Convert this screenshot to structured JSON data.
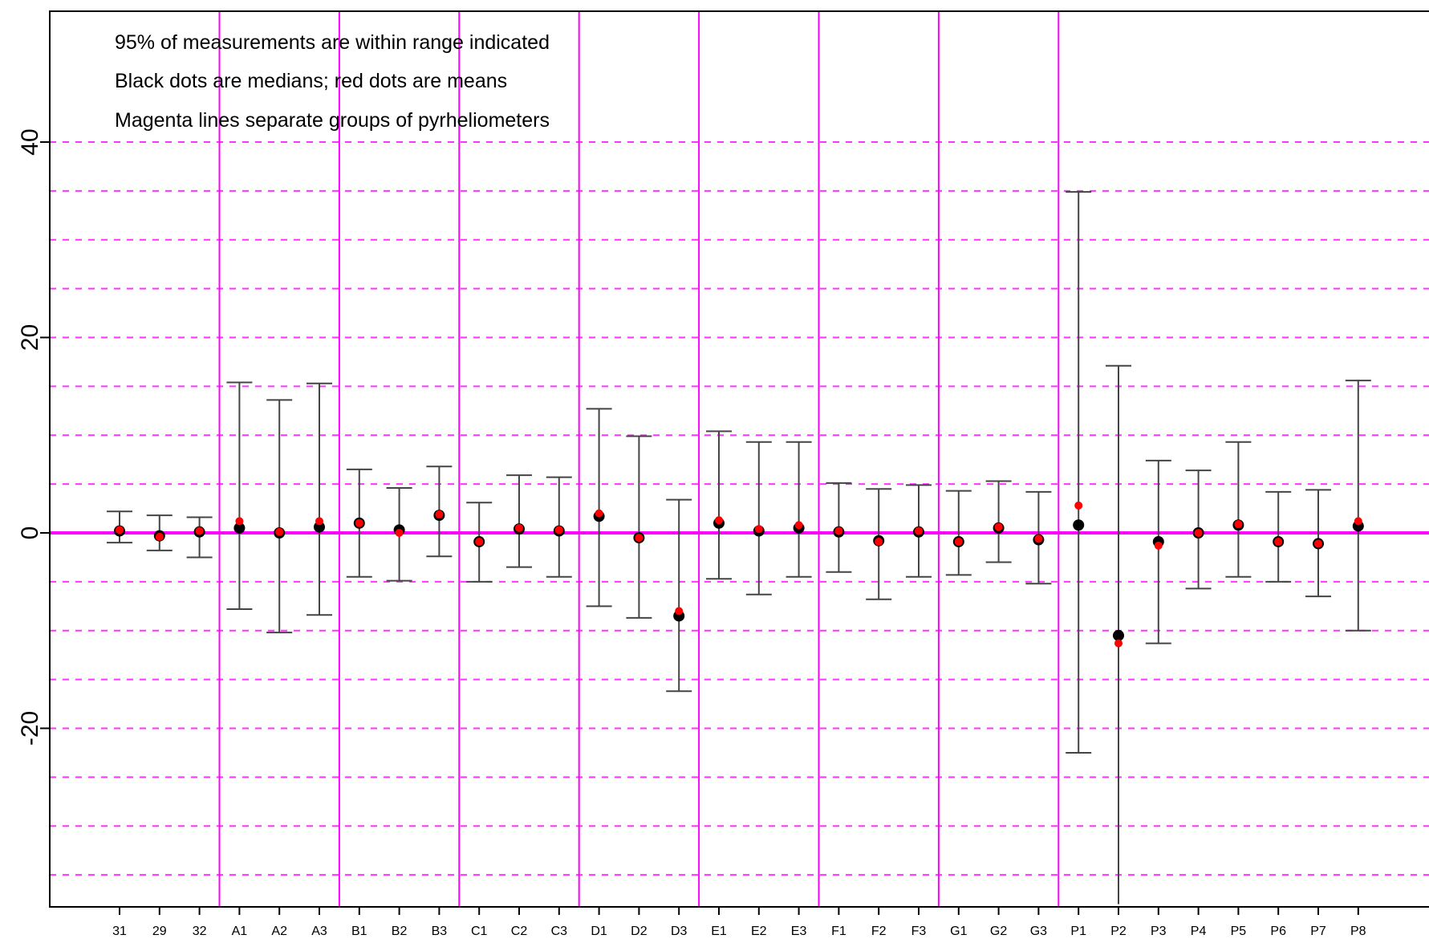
{
  "chart_data": {
    "type": "scatter",
    "title": "",
    "xlabel": "",
    "ylabel": "",
    "ylim": [
      -38,
      53
    ],
    "yticks": [
      -20,
      0,
      20,
      40
    ],
    "ytick_labels": [
      "-20",
      "0",
      "20",
      "40"
    ],
    "grid": true,
    "grid_style": "dashed horizontal lines every 5 units",
    "categories": [
      "31",
      "29",
      "32",
      "A1",
      "A2",
      "A3",
      "B1",
      "B2",
      "B3",
      "C1",
      "C2",
      "C3",
      "D1",
      "D2",
      "D3",
      "E1",
      "E2",
      "E3",
      "F1",
      "F2",
      "F3",
      "G1",
      "G2",
      "G3",
      "P1",
      "P2",
      "P3",
      "P4",
      "P5",
      "P6",
      "P7",
      "P8"
    ],
    "series": [
      {
        "key": "median",
        "color": "#000000",
        "values": [
          0.2,
          -0.3,
          0.1,
          0.5,
          0.0,
          0.6,
          1.0,
          0.3,
          1.8,
          -0.9,
          0.4,
          0.2,
          1.7,
          -0.5,
          -8.5,
          1.0,
          0.2,
          0.5,
          0.1,
          -0.8,
          0.1,
          -0.9,
          0.5,
          -0.7,
          0.8,
          -10.5,
          -0.9,
          0.0,
          0.8,
          -0.9,
          -1.1,
          0.7
        ]
      },
      {
        "key": "mean",
        "color": "#ff0000",
        "values": [
          0.3,
          -0.4,
          0.2,
          1.2,
          0.1,
          1.2,
          1.0,
          0.0,
          1.9,
          -0.9,
          0.5,
          0.3,
          2.0,
          -0.5,
          -8.0,
          1.3,
          0.4,
          0.8,
          0.2,
          -0.9,
          0.2,
          -0.9,
          0.6,
          -0.6,
          2.8,
          -11.3,
          -1.3,
          0.0,
          0.9,
          -0.9,
          -1.1,
          1.2
        ]
      }
    ],
    "range_low": [
      -1.0,
      -1.8,
      -2.5,
      -7.8,
      -10.2,
      -8.4,
      -4.5,
      -4.9,
      -2.4,
      -5.0,
      -3.5,
      -4.5,
      -7.5,
      -8.7,
      -16.2,
      -4.7,
      -6.3,
      -4.5,
      -4.0,
      -6.8,
      -4.5,
      -4.3,
      -3.0,
      -5.2,
      -22.5,
      -38.0,
      -11.3,
      -5.7,
      -4.5,
      -5.0,
      -6.5,
      -10.0
    ],
    "range_high": [
      2.2,
      1.8,
      1.6,
      15.4,
      13.6,
      15.3,
      6.5,
      4.6,
      6.8,
      3.1,
      5.9,
      5.7,
      12.7,
      9.9,
      3.4,
      10.4,
      9.3,
      9.3,
      5.1,
      4.5,
      4.9,
      4.3,
      5.3,
      4.2,
      34.9,
      17.1,
      7.4,
      6.4,
      9.3,
      4.2,
      4.4,
      15.6
    ],
    "group_separators_after": [
      "32",
      "A3",
      "B3",
      "C3",
      "D3",
      "E3",
      "F3",
      "G3"
    ],
    "annotations": [
      "95% of measurements are within range indicated",
      "Black dots are medians; red dots are means",
      "Magenta lines separate groups of pyrheliometers"
    ],
    "colors": {
      "grid": "#ff33ff",
      "zero_line": "#ff00ff",
      "separator": "#ff00ff",
      "error_bar": "#444444",
      "median": "#000000",
      "mean": "#ff0000"
    }
  }
}
